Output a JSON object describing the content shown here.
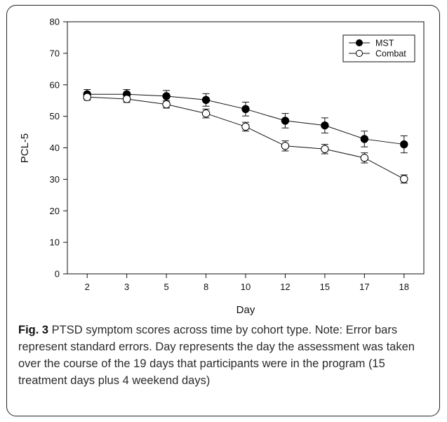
{
  "chart_data": {
    "type": "line",
    "xlabel": "Day",
    "ylabel": "PCL-5",
    "categories": [
      "2",
      "3",
      "5",
      "8",
      "10",
      "12",
      "15",
      "17",
      "18"
    ],
    "ylim": [
      0,
      80
    ],
    "yticks": [
      0,
      10,
      20,
      30,
      40,
      50,
      60,
      70,
      80
    ],
    "grid": false,
    "legend": "top-right",
    "series": [
      {
        "name": "MST",
        "marker": "filled-circle",
        "values": [
          57.0,
          57.0,
          56.4,
          55.2,
          52.3,
          48.6,
          47.1,
          42.8,
          41.1
        ],
        "errors": [
          1.5,
          1.5,
          1.8,
          2.0,
          2.2,
          2.3,
          2.4,
          2.5,
          2.7
        ]
      },
      {
        "name": "Combat",
        "marker": "open-circle",
        "values": [
          56.1,
          55.5,
          53.8,
          50.9,
          46.7,
          40.6,
          39.6,
          36.8,
          30.1
        ],
        "errors": [
          1.0,
          1.1,
          1.2,
          1.4,
          1.4,
          1.6,
          1.5,
          1.6,
          1.3
        ]
      }
    ]
  },
  "caption": {
    "label": "Fig. 3",
    "text": " PTSD symptom scores across time by cohort type. Note: Error bars represent standard errors. Day represents the day the assessment was taken over the course of the 19 days that participants were in the program (15 treatment days plus 4 weekend days)"
  }
}
